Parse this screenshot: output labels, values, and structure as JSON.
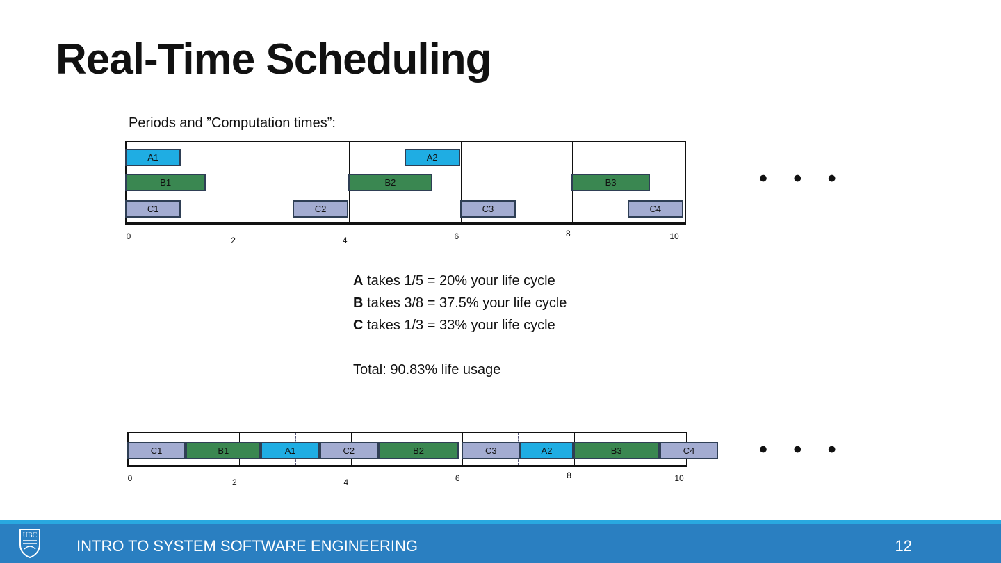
{
  "title": "Real-Time Scheduling",
  "subtitle": "Periods and ”Computation times”:",
  "colors": {
    "A": "#1fade3",
    "B": "#3a8751",
    "C": "#a3acd1"
  },
  "top_chart": {
    "ticks": [
      "0",
      "2",
      "4",
      "6",
      "8",
      "10"
    ],
    "tasks": [
      {
        "label": "A1",
        "type": "A",
        "row": 0,
        "start": 0,
        "end": 1
      },
      {
        "label": "A2",
        "type": "A",
        "row": 0,
        "start": 5,
        "end": 6
      },
      {
        "label": "B1",
        "type": "B",
        "row": 1,
        "start": 0,
        "end": 1.45
      },
      {
        "label": "B2",
        "type": "B",
        "row": 1,
        "start": 4,
        "end": 5.5
      },
      {
        "label": "B3",
        "type": "B",
        "row": 1,
        "start": 8,
        "end": 9.4
      },
      {
        "label": "C1",
        "type": "C",
        "row": 2,
        "start": 0,
        "end": 1
      },
      {
        "label": "C2",
        "type": "C",
        "row": 2,
        "start": 3,
        "end": 4
      },
      {
        "label": "C3",
        "type": "C",
        "row": 2,
        "start": 6,
        "end": 7
      },
      {
        "label": "C4",
        "type": "C",
        "row": 2,
        "start": 9,
        "end": 10
      }
    ]
  },
  "bottom_chart": {
    "ticks": [
      "0",
      "2",
      "4",
      "6",
      "8",
      "10"
    ],
    "tasks": [
      {
        "label": "C1",
        "type": "C",
        "start": 0,
        "end": 1.05
      },
      {
        "label": "B1",
        "type": "B",
        "start": 1.05,
        "end": 2.4
      },
      {
        "label": "A1",
        "type": "A",
        "start": 2.4,
        "end": 3.45
      },
      {
        "label": "C2",
        "type": "C",
        "start": 3.45,
        "end": 4.5
      },
      {
        "label": "B2",
        "type": "B",
        "start": 4.5,
        "end": 5.95
      },
      {
        "label": "C3",
        "type": "C",
        "start": 6,
        "end": 7.05
      },
      {
        "label": "A2",
        "type": "A",
        "start": 7.05,
        "end": 8
      },
      {
        "label": "B3",
        "type": "B",
        "start": 8,
        "end": 9.55
      },
      {
        "label": "C4",
        "type": "C",
        "start": 9.55,
        "end": 10.6
      }
    ]
  },
  "ellipsis": "• • •",
  "lines": [
    {
      "bold": "A",
      "rest": " takes 1/5 = 20%  your life cycle"
    },
    {
      "bold": "B",
      "rest": " takes 3/8 = 37.5% your life cycle"
    },
    {
      "bold": "C",
      "rest": " takes 1/3 = 33% your life cycle"
    }
  ],
  "total": "Total: 90.83% life usage",
  "footer": {
    "course": "INTRO TO SYSTEM SOFTWARE ENGINEERING",
    "page": "12",
    "logo": "UBC"
  }
}
